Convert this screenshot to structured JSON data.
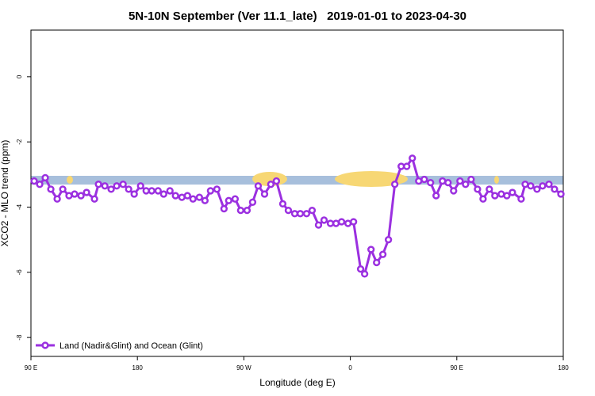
{
  "chart_data": {
    "type": "line",
    "title": "5N-10N September (Ver 11.1_late)   2019-01-01 to 2023-04-30",
    "xlabel": "Longitude (deg E)",
    "ylabel": "XCO2 - MLO trend (ppm)",
    "xlim": [
      90,
      540
    ],
    "ylim": [
      -8.58,
      1.43
    ],
    "xticks": [
      {
        "value": 90,
        "label": "90 E"
      },
      {
        "value": 180,
        "label": "180"
      },
      {
        "value": 270,
        "label": "90 W"
      },
      {
        "value": 360,
        "label": "0"
      },
      {
        "value": 450,
        "label": "90 E"
      },
      {
        "value": 540,
        "label": "180"
      }
    ],
    "yticks": [
      0,
      -2,
      -4,
      -6,
      -8
    ],
    "legend": "bottom-left",
    "series": [
      {
        "name": "Land (Nadir&Glint) and Ocean (Glint)",
        "color": "#9b30e0",
        "x": [
          92.7,
          97.4,
          102.1,
          106.8,
          112.2,
          116.9,
          122.2,
          126.9,
          132.3,
          137.0,
          143.7,
          147.1,
          152.5,
          157.8,
          162.5,
          167.9,
          172.6,
          177.3,
          182.7,
          187.4,
          192.1,
          197.5,
          202.2,
          207.5,
          212.2,
          217.6,
          222.3,
          227.0,
          232.4,
          237.1,
          241.8,
          247.2,
          253.2,
          257.2,
          262.6,
          267.3,
          272.7,
          277.4,
          282.1,
          287.5,
          292.8,
          297.5,
          302.9,
          307.6,
          313.0,
          317.7,
          323.0,
          327.7,
          333.1,
          337.8,
          343.2,
          347.9,
          352.6,
          358.0,
          362.7,
          368.7,
          372.1,
          377.5,
          382.2,
          387.5,
          392.2,
          397.6,
          403.0,
          407.7,
          412.4,
          417.8,
          422.5,
          427.8,
          432.5,
          437.9,
          442.6,
          447.3,
          452.7,
          457.4,
          462.1,
          467.5,
          472.2,
          477.5,
          482.2,
          487.6,
          492.3,
          497.0,
          504.4,
          507.8,
          512.5,
          517.8,
          522.5,
          527.9,
          532.6,
          538.0
        ],
        "values": [
          -3.2,
          -3.3,
          -3.1,
          -3.45,
          -3.75,
          -3.45,
          -3.65,
          -3.6,
          -3.65,
          -3.55,
          -3.75,
          -3.3,
          -3.35,
          -3.45,
          -3.35,
          -3.3,
          -3.45,
          -3.6,
          -3.35,
          -3.5,
          -3.5,
          -3.5,
          -3.6,
          -3.5,
          -3.65,
          -3.7,
          -3.65,
          -3.75,
          -3.7,
          -3.8,
          -3.5,
          -3.45,
          -4.05,
          -3.8,
          -3.75,
          -4.1,
          -4.1,
          -3.85,
          -3.35,
          -3.6,
          -3.3,
          -3.2,
          -3.9,
          -4.1,
          -4.2,
          -4.2,
          -4.2,
          -4.1,
          -4.55,
          -4.4,
          -4.5,
          -4.5,
          -4.45,
          -4.5,
          -4.45,
          -5.9,
          -6.05,
          -5.3,
          -5.7,
          -5.45,
          -5.0,
          -3.3,
          -2.75,
          -2.75,
          -2.5,
          -3.2,
          -3.15,
          -3.25,
          -3.65,
          -3.2,
          -3.25,
          -3.5,
          -3.2,
          -3.3,
          -3.15,
          -3.45,
          -3.75,
          -3.45,
          -3.65,
          -3.6,
          -3.65,
          -3.55,
          -3.75,
          -3.3,
          -3.35,
          -3.45,
          -3.35,
          -3.3,
          -3.45,
          -3.6
        ]
      }
    ]
  }
}
